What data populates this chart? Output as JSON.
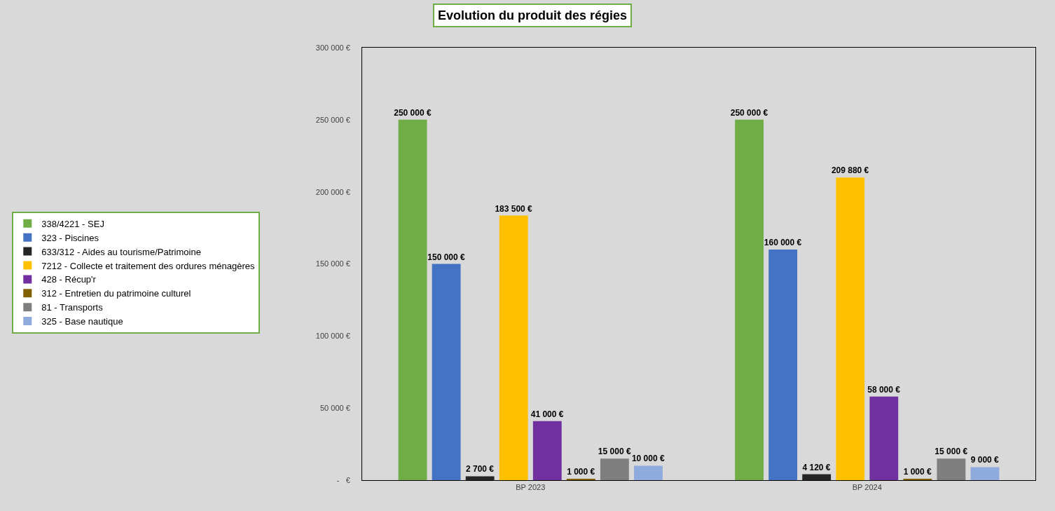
{
  "chart_data": {
    "type": "bar",
    "title": "Evolution du produit des régies",
    "categories": [
      "BP 2023",
      "BP 2024"
    ],
    "series": [
      {
        "name": "338/4221 - SEJ",
        "color": "#70ad47",
        "values": [
          250000,
          250000
        ],
        "value_labels": [
          "250 000 €",
          "250 000 €"
        ]
      },
      {
        "name": "323 - Piscines",
        "color": "#4472c4",
        "values": [
          150000,
          160000
        ],
        "value_labels": [
          "150 000 €",
          "160 000 €"
        ]
      },
      {
        "name": "633/312 - Aides au tourisme/Patrimoine",
        "color": "#262626",
        "values": [
          2700,
          4120
        ],
        "value_labels": [
          "2 700 €",
          "4 120 €"
        ]
      },
      {
        "name": "7212 - Collecte et traitement des ordures ménagères",
        "color": "#ffc000",
        "values": [
          183500,
          209880
        ],
        "value_labels": [
          "183 500 €",
          "209 880 €"
        ]
      },
      {
        "name": "428 - Récup'r",
        "color": "#7030a0",
        "values": [
          41000,
          58000
        ],
        "value_labels": [
          "41 000 €",
          "58 000 €"
        ]
      },
      {
        "name": "312 - Entretien du patrimoine culturel",
        "color": "#806000",
        "values": [
          1000,
          1000
        ],
        "value_labels": [
          "1 000 €",
          "1 000 €"
        ]
      },
      {
        "name": "81 - Transports",
        "color": "#7f7f7f",
        "values": [
          15000,
          15000
        ],
        "value_labels": [
          "15 000 €",
          "15 000 €"
        ]
      },
      {
        "name": "325 - Base nautique",
        "color": "#8faadc",
        "values": [
          10000,
          9000
        ],
        "value_labels": [
          "10 000 €",
          "9 000 €"
        ]
      }
    ],
    "ylim": [
      0,
      300000
    ],
    "yticks": [
      {
        "value": 0,
        "label": "-   €"
      },
      {
        "value": 50000,
        "label": "50 000 €"
      },
      {
        "value": 100000,
        "label": "100 000 €"
      },
      {
        "value": 150000,
        "label": "150 000 €"
      },
      {
        "value": 200000,
        "label": "200 000 €"
      },
      {
        "value": 250000,
        "label": "250 000 €"
      },
      {
        "value": 300000,
        "label": "300 000 €"
      }
    ],
    "grid": false,
    "legend": "left"
  }
}
